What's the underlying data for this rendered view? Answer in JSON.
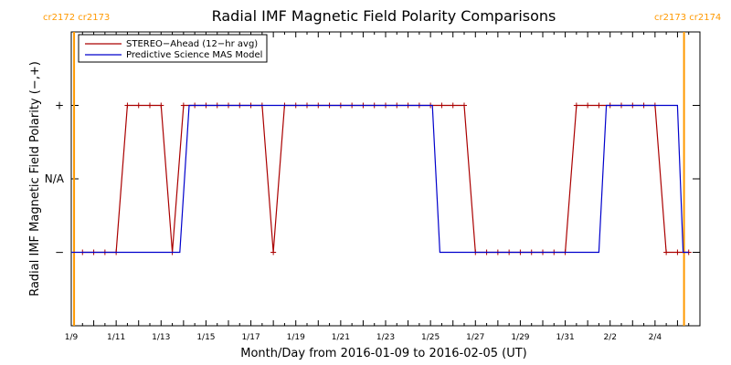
{
  "chart_data": {
    "type": "line",
    "title": "Radial IMF Magnetic Field Polarity Comparisons",
    "xlabel": "Month/Day from 2016-01-09 to 2016-02-05 (UT)",
    "ylabel": "Radial IMF Magnetic Field Polarity (−,+)",
    "x_range": [
      "2016-01-09",
      "2016-02-05"
    ],
    "xlim_days": [
      0,
      28
    ],
    "x_tick_labels": [
      "1/9",
      "1/11",
      "1/13",
      "1/15",
      "1/17",
      "1/19",
      "1/21",
      "1/23",
      "1/25",
      "1/27",
      "1/29",
      "1/31",
      "2/2",
      "2/4"
    ],
    "x_tick_dates": [
      "2016-01-09",
      "2016-01-11",
      "2016-01-13",
      "2016-01-15",
      "2016-01-17",
      "2016-01-19",
      "2016-01-21",
      "2016-01-23",
      "2016-01-25",
      "2016-01-27",
      "2016-01-29",
      "2016-01-31",
      "2016-02-02",
      "2016-02-04"
    ],
    "y_categories": [
      "−",
      "N/A",
      "+"
    ],
    "y_category_values": [
      -1,
      0,
      1
    ],
    "ylim": [
      -2,
      2
    ],
    "legend_position": "top-left",
    "carrington_labels": {
      "left": "cr2172 cr2173",
      "right": "cr2173 cr2174",
      "color": "#ff9900"
    },
    "carrington_markers": [
      {
        "date": "2016-01-09T03:00"
      },
      {
        "date": "2016-02-05T07:00"
      }
    ],
    "series": [
      {
        "name": "STEREO−Ahead (12−hr avg)",
        "color": "#aa0000",
        "markers": "plus",
        "points": [
          [
            "2016-01-09T12:00",
            -1
          ],
          [
            "2016-01-10T00:00",
            -1
          ],
          [
            "2016-01-10T12:00",
            -1
          ],
          [
            "2016-01-11T00:00",
            -1
          ],
          [
            "2016-01-11T12:00",
            1
          ],
          [
            "2016-01-12T00:00",
            1
          ],
          [
            "2016-01-12T12:00",
            1
          ],
          [
            "2016-01-13T00:00",
            1
          ],
          [
            "2016-01-13T12:00",
            -1
          ],
          [
            "2016-01-14T00:00",
            1
          ],
          [
            "2016-01-14T12:00",
            1
          ],
          [
            "2016-01-15T00:00",
            1
          ],
          [
            "2016-01-15T12:00",
            1
          ],
          [
            "2016-01-16T00:00",
            1
          ],
          [
            "2016-01-16T12:00",
            1
          ],
          [
            "2016-01-17T00:00",
            1
          ],
          [
            "2016-01-17T12:00",
            1
          ],
          [
            "2016-01-18T00:00",
            -1
          ],
          [
            "2016-01-18T12:00",
            1
          ],
          [
            "2016-01-19T00:00",
            1
          ],
          [
            "2016-01-19T12:00",
            1
          ],
          [
            "2016-01-20T00:00",
            1
          ],
          [
            "2016-01-20T12:00",
            1
          ],
          [
            "2016-01-21T00:00",
            1
          ],
          [
            "2016-01-21T12:00",
            1
          ],
          [
            "2016-01-22T00:00",
            1
          ],
          [
            "2016-01-22T12:00",
            1
          ],
          [
            "2016-01-23T00:00",
            1
          ],
          [
            "2016-01-23T12:00",
            1
          ],
          [
            "2016-01-24T00:00",
            1
          ],
          [
            "2016-01-24T12:00",
            1
          ],
          [
            "2016-01-25T00:00",
            1
          ],
          [
            "2016-01-25T12:00",
            1
          ],
          [
            "2016-01-26T00:00",
            1
          ],
          [
            "2016-01-26T12:00",
            1
          ],
          [
            "2016-01-27T00:00",
            -1
          ],
          [
            "2016-01-27T12:00",
            -1
          ],
          [
            "2016-01-28T00:00",
            -1
          ],
          [
            "2016-01-28T12:00",
            -1
          ],
          [
            "2016-01-29T00:00",
            -1
          ],
          [
            "2016-01-29T12:00",
            -1
          ],
          [
            "2016-01-30T00:00",
            -1
          ],
          [
            "2016-01-30T12:00",
            -1
          ],
          [
            "2016-01-31T00:00",
            -1
          ],
          [
            "2016-01-31T12:00",
            1
          ],
          [
            "2016-02-01T00:00",
            1
          ],
          [
            "2016-02-01T12:00",
            1
          ],
          [
            "2016-02-02T00:00",
            1
          ],
          [
            "2016-02-02T12:00",
            1
          ],
          [
            "2016-02-03T00:00",
            1
          ],
          [
            "2016-02-03T12:00",
            1
          ],
          [
            "2016-02-04T00:00",
            1
          ],
          [
            "2016-02-04T12:00",
            -1
          ],
          [
            "2016-02-05T00:00",
            -1
          ],
          [
            "2016-02-05T12:00",
            -1
          ]
        ]
      },
      {
        "name": "Predictive Science MAS Model",
        "color": "#0000cc",
        "markers": "none",
        "points": [
          [
            "2016-01-09T00:00",
            -1
          ],
          [
            "2016-01-13T20:00",
            -1
          ],
          [
            "2016-01-14T06:00",
            1
          ],
          [
            "2016-01-25T02:00",
            1
          ],
          [
            "2016-01-25T10:00",
            -1
          ],
          [
            "2016-02-01T12:00",
            -1
          ],
          [
            "2016-02-01T20:00",
            1
          ],
          [
            "2016-02-05T00:00",
            1
          ],
          [
            "2016-02-05T06:00",
            -1
          ],
          [
            "2016-02-05T12:00",
            -1
          ]
        ]
      }
    ]
  }
}
